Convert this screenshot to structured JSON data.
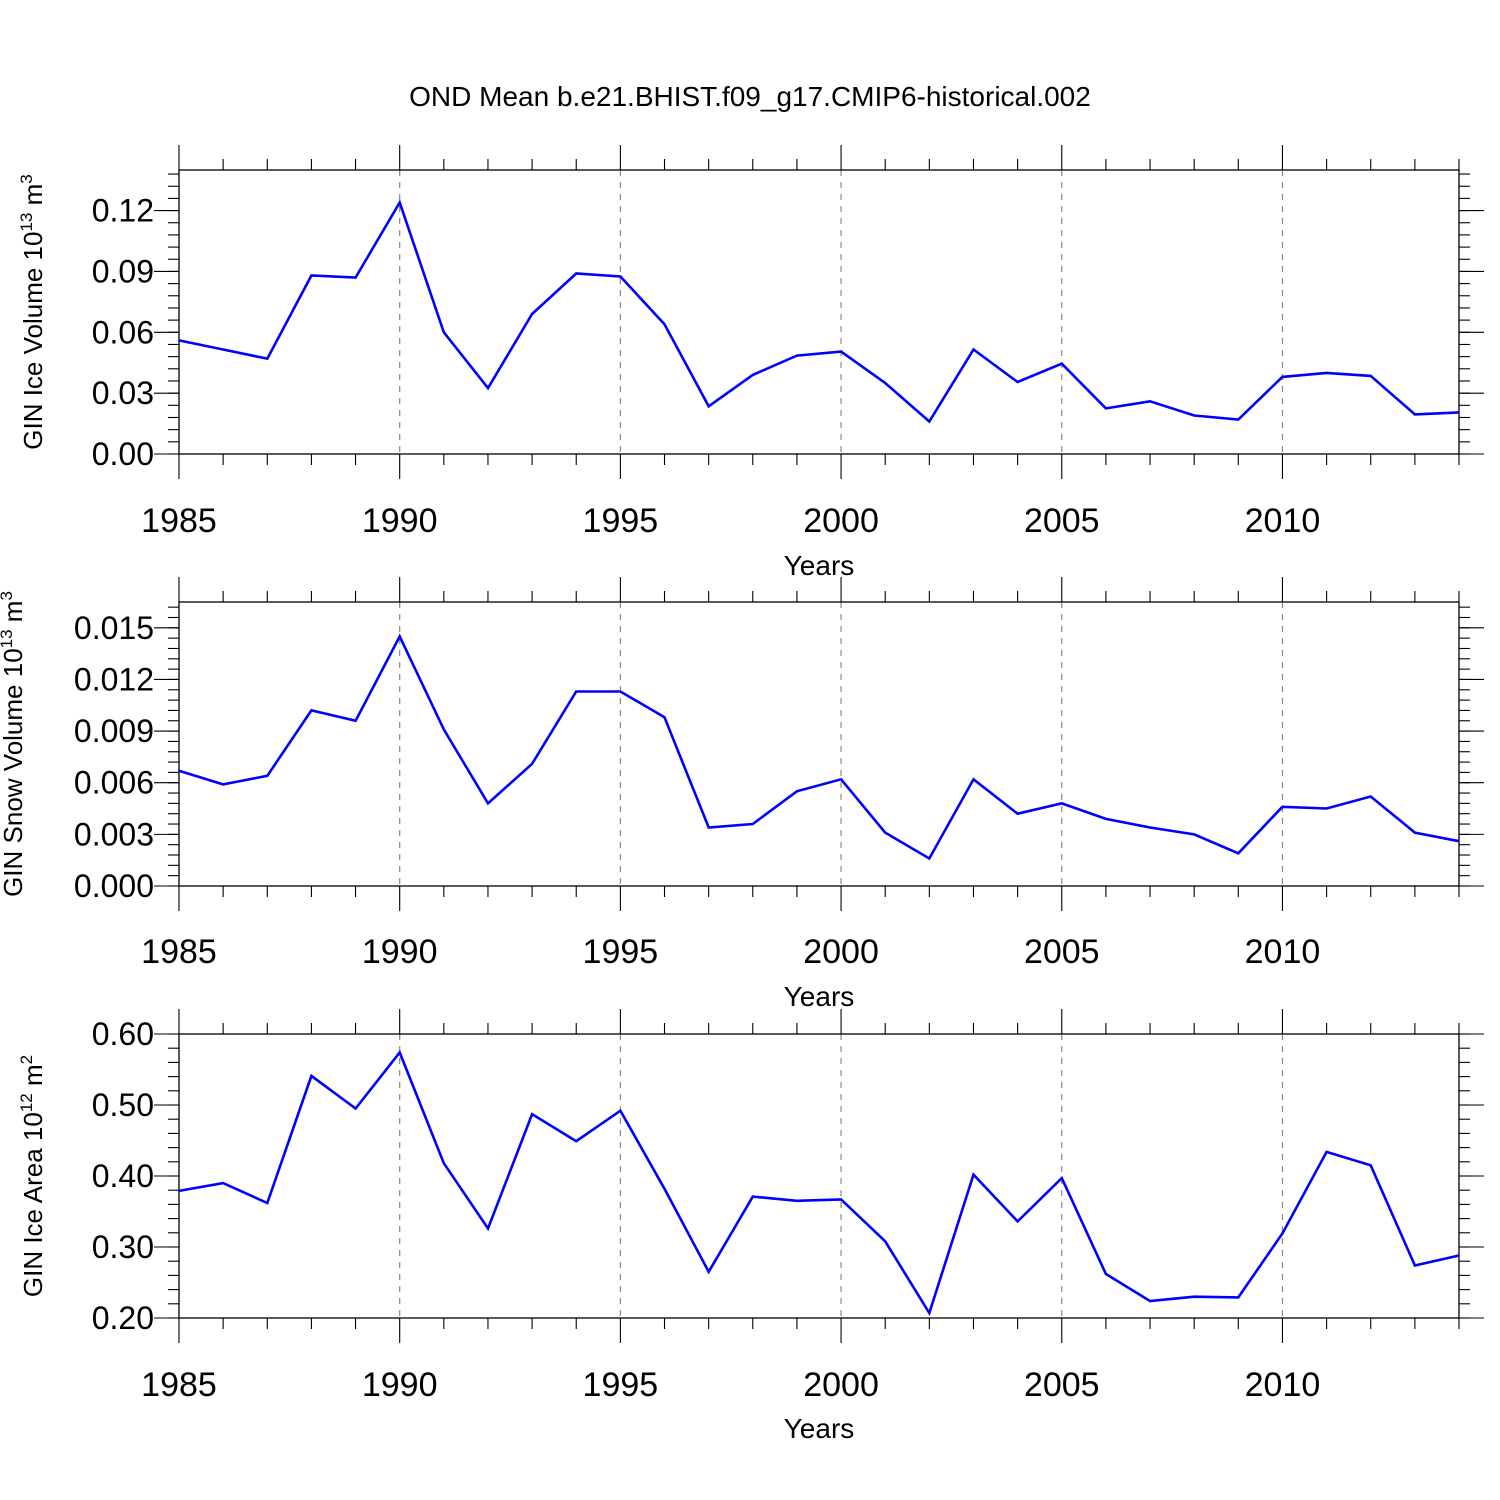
{
  "title": "OND Mean b.e21.BHIST.f09_g17.CMIP6-historical.002",
  "colors": {
    "line": "#0000ff",
    "axis": "#000000",
    "grid": "#888888"
  },
  "chart_data": [
    {
      "type": "line",
      "ylabel": "GIN Ice Volume 10",
      "ylabel_exp": "13",
      "ylabel_unit": "m",
      "ylabel_unit_exp": "3",
      "xlabel": "Years",
      "xlim": [
        1985,
        2014
      ],
      "ylim": [
        0.0,
        0.14
      ],
      "yticks": [
        "0.00",
        "0.03",
        "0.06",
        "0.09",
        "0.12"
      ],
      "xticks": [
        "1985",
        "1990",
        "1995",
        "2000",
        "2005",
        "2010"
      ],
      "series": [
        {
          "name": "GIN Ice Volume",
          "x": [
            1985,
            1986,
            1987,
            1988,
            1989,
            1990,
            1991,
            1992,
            1993,
            1994,
            1995,
            1996,
            1997,
            1998,
            1999,
            2000,
            2001,
            2002,
            2003,
            2004,
            2005,
            2006,
            2007,
            2008,
            2009,
            2010,
            2011,
            2012,
            2013,
            2014
          ],
          "values": [
            0.056,
            0.0515,
            0.047,
            0.088,
            0.087,
            0.124,
            0.06,
            0.0325,
            0.069,
            0.089,
            0.0875,
            0.064,
            0.0235,
            0.039,
            0.0485,
            0.0505,
            0.035,
            0.016,
            0.0515,
            0.0355,
            0.0445,
            0.0225,
            0.026,
            0.019,
            0.017,
            0.038,
            0.04,
            0.0385,
            0.0195,
            0.0205
          ]
        }
      ]
    },
    {
      "type": "line",
      "ylabel": "GIN Snow Volume 10",
      "ylabel_exp": "13",
      "ylabel_unit": "m",
      "ylabel_unit_exp": "3",
      "xlabel": "Years",
      "xlim": [
        1985,
        2014
      ],
      "ylim": [
        0.0,
        0.0165
      ],
      "yticks": [
        "0.000",
        "0.003",
        "0.006",
        "0.009",
        "0.012",
        "0.015"
      ],
      "xticks": [
        "1985",
        "1990",
        "1995",
        "2000",
        "2005",
        "2010"
      ],
      "series": [
        {
          "name": "GIN Snow Volume",
          "x": [
            1985,
            1986,
            1987,
            1988,
            1989,
            1990,
            1991,
            1992,
            1993,
            1994,
            1995,
            1996,
            1997,
            1998,
            1999,
            2000,
            2001,
            2002,
            2003,
            2004,
            2005,
            2006,
            2007,
            2008,
            2009,
            2010,
            2011,
            2012,
            2013,
            2014
          ],
          "values": [
            0.0067,
            0.0059,
            0.0064,
            0.0102,
            0.0096,
            0.0145,
            0.0091,
            0.0048,
            0.0071,
            0.0113,
            0.0113,
            0.0098,
            0.0034,
            0.0036,
            0.0055,
            0.0062,
            0.0031,
            0.0016,
            0.0062,
            0.0042,
            0.0048,
            0.0039,
            0.0034,
            0.003,
            0.0019,
            0.0046,
            0.0045,
            0.0052,
            0.0031,
            0.0026
          ]
        }
      ]
    },
    {
      "type": "line",
      "ylabel": "GIN Ice Area 10",
      "ylabel_exp": "12",
      "ylabel_unit": "m",
      "ylabel_unit_exp": "2",
      "xlabel": "Years",
      "xlim": [
        1985,
        2014
      ],
      "ylim": [
        0.2,
        0.6
      ],
      "yticks": [
        "0.20",
        "0.30",
        "0.40",
        "0.50",
        "0.60"
      ],
      "xticks": [
        "1985",
        "1990",
        "1995",
        "2000",
        "2005",
        "2010"
      ],
      "series": [
        {
          "name": "GIN Ice Area",
          "x": [
            1985,
            1986,
            1987,
            1988,
            1989,
            1990,
            1991,
            1992,
            1993,
            1994,
            1995,
            1996,
            1997,
            1998,
            1999,
            2000,
            2001,
            2002,
            2003,
            2004,
            2005,
            2006,
            2007,
            2008,
            2009,
            2010,
            2011,
            2012,
            2013,
            2014
          ],
          "values": [
            0.379,
            0.39,
            0.362,
            0.541,
            0.495,
            0.574,
            0.418,
            0.326,
            0.487,
            0.449,
            0.492,
            0.382,
            0.265,
            0.371,
            0.365,
            0.367,
            0.308,
            0.207,
            0.402,
            0.336,
            0.397,
            0.262,
            0.224,
            0.23,
            0.229,
            0.319,
            0.434,
            0.415,
            0.274,
            0.288
          ]
        }
      ]
    }
  ]
}
